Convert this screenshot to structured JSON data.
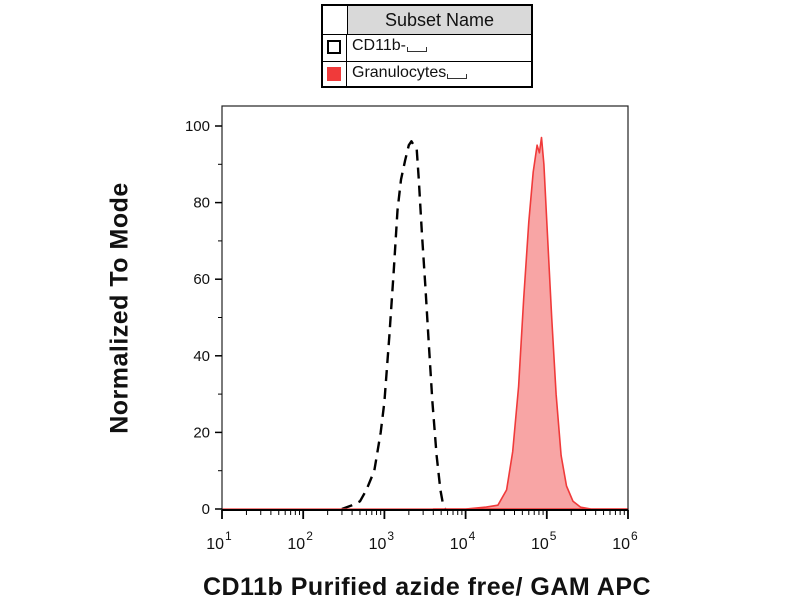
{
  "legend": {
    "header": "Subset Name",
    "items": [
      {
        "label": "CD11b-",
        "style": "dashed-outline",
        "color": "#000000"
      },
      {
        "label": "Granulocytes",
        "style": "filled",
        "color": "#f03a3a"
      }
    ]
  },
  "chart_data": {
    "type": "area",
    "title": "",
    "xlabel": "CD11b Purified azide free/ GAM APC",
    "ylabel": "Normalized To Mode",
    "x_scale": "log",
    "xlim": [
      10,
      1000000
    ],
    "ylim": [
      0,
      100
    ],
    "x_ticks": [
      {
        "value": 10,
        "base": "10",
        "exp": "1"
      },
      {
        "value": 100,
        "base": "10",
        "exp": "2"
      },
      {
        "value": 1000,
        "base": "10",
        "exp": "3"
      },
      {
        "value": 10000,
        "base": "10",
        "exp": "4"
      },
      {
        "value": 100000,
        "base": "10",
        "exp": "5"
      },
      {
        "value": 1000000,
        "base": "10",
        "exp": "6"
      }
    ],
    "y_ticks": [
      0,
      20,
      40,
      60,
      80,
      100
    ],
    "grid": false,
    "series": [
      {
        "name": "CD11b-",
        "style": "dashed",
        "color": "#000000",
        "points": [
          [
            300,
            0
          ],
          [
            400,
            1
          ],
          [
            500,
            2
          ],
          [
            600,
            5
          ],
          [
            750,
            10
          ],
          [
            900,
            20
          ],
          [
            1000,
            28
          ],
          [
            1150,
            45
          ],
          [
            1300,
            62
          ],
          [
            1450,
            78
          ],
          [
            1600,
            86
          ],
          [
            1800,
            91
          ],
          [
            2000,
            95
          ],
          [
            2150,
            96
          ],
          [
            2300,
            95
          ],
          [
            2500,
            94
          ],
          [
            2650,
            86
          ],
          [
            2900,
            72
          ],
          [
            3200,
            58
          ],
          [
            3500,
            44
          ],
          [
            3900,
            28
          ],
          [
            4400,
            14
          ],
          [
            4900,
            5
          ],
          [
            5300,
            1
          ],
          [
            5600,
            0
          ]
        ]
      },
      {
        "name": "Granulocytes",
        "style": "filled",
        "color": "#f03a3a",
        "points": [
          [
            4000,
            0
          ],
          [
            10000,
            0
          ],
          [
            18000,
            0.5
          ],
          [
            25000,
            1
          ],
          [
            32000,
            5
          ],
          [
            38000,
            15
          ],
          [
            45000,
            32
          ],
          [
            52000,
            55
          ],
          [
            60000,
            75
          ],
          [
            68000,
            88
          ],
          [
            76000,
            95
          ],
          [
            81000,
            93
          ],
          [
            86000,
            97
          ],
          [
            92000,
            90
          ],
          [
            100000,
            75
          ],
          [
            115000,
            50
          ],
          [
            130000,
            30
          ],
          [
            150000,
            14
          ],
          [
            175000,
            6
          ],
          [
            210000,
            2
          ],
          [
            260000,
            0.5
          ],
          [
            350000,
            0
          ],
          [
            1000000,
            0
          ]
        ]
      }
    ]
  }
}
